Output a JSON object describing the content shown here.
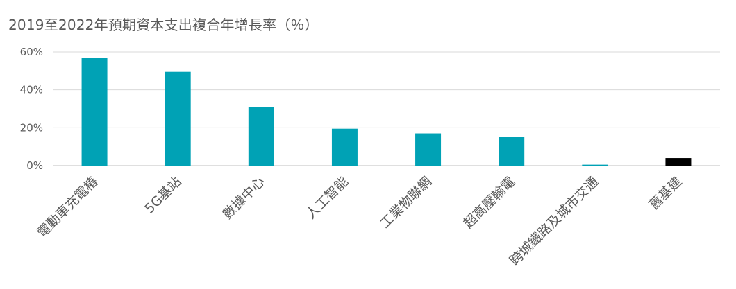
{
  "chart_data": {
    "type": "bar",
    "title": "2019至2022年預期資本支出複合年增長率（％）",
    "xlabel": "",
    "ylabel": "",
    "ylim": [
      0,
      60
    ],
    "yticks": [
      "0%",
      "20%",
      "40%",
      "60%"
    ],
    "grid": true,
    "legend": "none",
    "categories": [
      "電動車充電樁",
      "5G基站",
      "數據中心",
      "人工智能",
      "工業物聯網",
      "超高壓輸電",
      "跨城鐵路及城市交通",
      "舊基建"
    ],
    "values": [
      57,
      49.5,
      31,
      19.5,
      17,
      15,
      0.5,
      4
    ],
    "colors": [
      "#00A2B5",
      "#00A2B5",
      "#00A2B5",
      "#00A2B5",
      "#00A2B5",
      "#00A2B5",
      "#00A2B5",
      "#000000"
    ]
  }
}
